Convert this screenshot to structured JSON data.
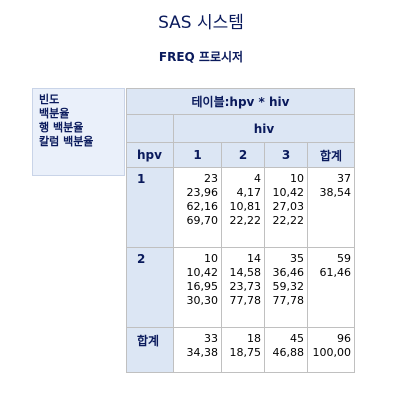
{
  "system_title": "SAS 시스템",
  "procedure_title": "FREQ 프로시저",
  "legend": [
    "빈도",
    "백분율",
    "행 백분율",
    "칼럼 백분율"
  ],
  "table": {
    "title": "테이블:hpv * hiv",
    "col_variable": "hiv",
    "row_variable": "hpv",
    "col_headers": [
      "1",
      "2",
      "3",
      "합계"
    ],
    "rows": [
      {
        "label": "1",
        "cells": [
          [
            "23",
            "23,96",
            "62,16",
            "69,70"
          ],
          [
            "4",
            "4,17",
            "10,81",
            "22,22"
          ],
          [
            "10",
            "10,42",
            "27,03",
            "22,22"
          ],
          [
            "37",
            "38,54"
          ]
        ]
      },
      {
        "label": "2",
        "cells": [
          [
            "10",
            "10,42",
            "16,95",
            "30,30"
          ],
          [
            "14",
            "14,58",
            "23,73",
            "77,78"
          ],
          [
            "35",
            "36,46",
            "59,32",
            "77,78"
          ],
          [
            "59",
            "61,46"
          ]
        ]
      },
      {
        "label": "합계",
        "cells": [
          [
            "33",
            "34,38"
          ],
          [
            "18",
            "18,75"
          ],
          [
            "45",
            "46,88"
          ],
          [
            "96",
            "100,00"
          ]
        ]
      }
    ]
  }
}
